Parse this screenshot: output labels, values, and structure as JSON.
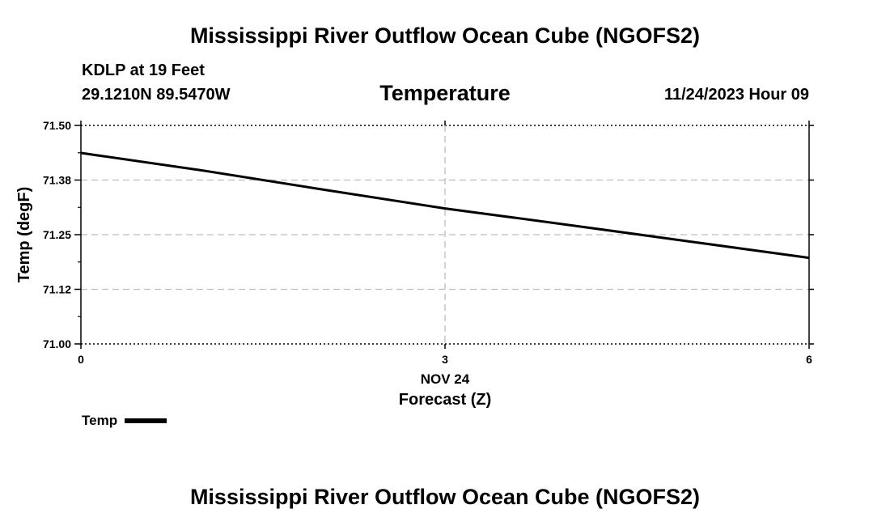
{
  "header": {
    "title": "Mississippi River Outflow Ocean Cube (NGOFS2)",
    "station": "KDLP at 19 Feet",
    "coords": "29.1210N  89.5470W",
    "datetime": "11/24/2023 Hour 09"
  },
  "footer": {
    "title": "Mississippi River Outflow Ocean Cube (NGOFS2)"
  },
  "colors": {
    "series": "#000000",
    "grid": "#bdbdbd",
    "background": "#ffffff"
  },
  "chart_data": {
    "type": "line",
    "title": "Temperature",
    "xlabel": "Forecast (Z)",
    "ylabel": "Temp (degF)",
    "date_label": "NOV 24",
    "xlim": [
      0,
      6
    ],
    "ylim": [
      71.0,
      71.5
    ],
    "x_ticks": [
      0,
      3,
      6
    ],
    "x_tick_labels": [
      "0",
      "3",
      "6"
    ],
    "y_ticks": [
      71.0,
      71.125,
      71.25,
      71.375,
      71.5
    ],
    "y_tick_labels": [
      "71.00",
      "71.12",
      "71.25",
      "71.38",
      "71.50"
    ],
    "grid": true,
    "legend": "bottom-left",
    "series": [
      {
        "name": "Temp",
        "x": [
          0,
          1,
          2,
          3,
          4,
          5,
          6
        ],
        "values": [
          71.437,
          71.397,
          71.353,
          71.31,
          71.273,
          71.235,
          71.197
        ]
      }
    ]
  }
}
